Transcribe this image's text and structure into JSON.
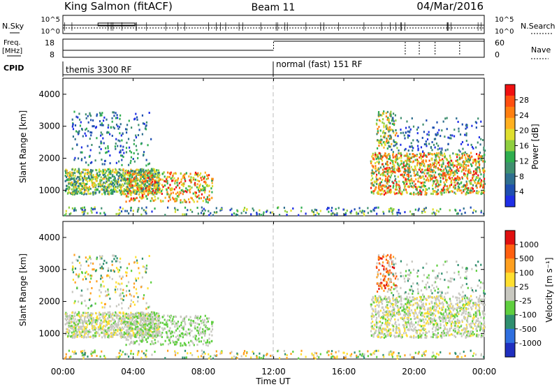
{
  "header": {
    "site": "King Salmon (fitACF)",
    "beam": "Beam 11",
    "date": "04/Mar/2016"
  },
  "status_panels": {
    "nsky_label": "N.Sky",
    "nsky_ticks": [
      "10^5",
      "10^0"
    ],
    "nsearch_label": "N.Search",
    "nsearch_ticks": [
      "10^5",
      "10^0"
    ],
    "freq_label": "Freq.",
    "freq_unit": "[MHz]",
    "freq_ticks": [
      "18",
      "8"
    ],
    "nave_label": "Nave",
    "nave_ticks": [
      "60",
      "0"
    ],
    "cpid_label": "CPID",
    "cpid_segments": [
      {
        "label": "themis 3300 RF",
        "start_hour": 0
      },
      {
        "label": "normal (fast) 151 RF",
        "start_hour": 12
      }
    ]
  },
  "chart_data": [
    {
      "type": "heatmap",
      "name": "power",
      "ylabel": "Slant Range [km]",
      "yticks": [
        1000,
        2000,
        3000,
        4000
      ],
      "ylim": [
        200,
        4500
      ],
      "xlim": [
        0,
        24
      ],
      "colorbar": {
        "label": "Power [dB]",
        "ticks": [
          "28",
          "24",
          "20",
          "16",
          "12",
          "8",
          "4"
        ],
        "colors": [
          "#1f2fe6",
          "#1f4fb0",
          "#2f6f8f",
          "#3f8f6f",
          "#2fae4f",
          "#8fcf3f",
          "#dfdf2f",
          "#ffb020",
          "#ff7f10",
          "#ff4f10",
          "#f01010"
        ]
      }
    },
    {
      "type": "heatmap",
      "name": "velocity",
      "ylabel": "Slant Range [km]",
      "yticks": [
        1000,
        2000,
        3000,
        4000
      ],
      "ylim": [
        200,
        4500
      ],
      "xlim": [
        0,
        24
      ],
      "colorbar": {
        "label": "Velocity [m s⁻¹]",
        "ticks": [
          "1000",
          "500",
          "100",
          "25",
          "-25",
          "-100",
          "-500",
          "-1000"
        ],
        "colors": [
          "#1f2fbf",
          "#2f6fdf",
          "#2f8f6f",
          "#5fcf3f",
          "#c8c8c0",
          "#ffdf30",
          "#ffa020",
          "#ff6010",
          "#e01010"
        ]
      }
    }
  ],
  "xaxis": {
    "label": "Time UT",
    "ticks": [
      "00:00",
      "04:00",
      "08:00",
      "12:00",
      "16:00",
      "20:00",
      "00:00"
    ]
  }
}
